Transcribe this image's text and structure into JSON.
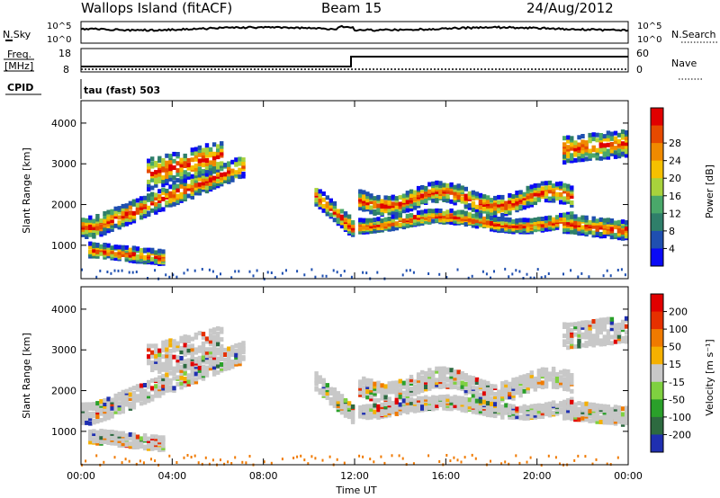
{
  "header": {
    "title": "Wallops Island (fitACF)",
    "beam": "Beam 15",
    "date": "24/Aug/2012"
  },
  "nsky_panel": {
    "left_label": "N.Sky",
    "right_label": "N.Search",
    "left_ticks": [
      "10^5",
      "10^0"
    ],
    "right_ticks": [
      "10^5",
      "10^0"
    ]
  },
  "freq_panel": {
    "left_label_1": "Freq.",
    "left_label_2": "[MHz]",
    "right_label": "Nave",
    "left_ticks": [
      "18",
      "8"
    ],
    "right_ticks": [
      "60",
      "0"
    ],
    "cpid_label": "CPID",
    "mode_text": "tau (fast) 503"
  },
  "chart_data": [
    {
      "type": "heatmap",
      "name": "power",
      "ylabel": "Slant Range [km]",
      "xlabel": "Time UT",
      "x_ticks": [
        "00:00",
        "04:00",
        "08:00",
        "12:00",
        "16:00",
        "20:00",
        "00:00"
      ],
      "x_range_hours": [
        0,
        24
      ],
      "y_ticks": [
        1000,
        2000,
        3000,
        4000
      ],
      "ylim": [
        180,
        4550
      ],
      "colorbar_label": "Power [dB]",
      "colorbar_ticks": [
        "4",
        "8",
        "12",
        "16",
        "20",
        "24",
        "28"
      ],
      "colors": [
        "#0a0af5",
        "#1f4fb0",
        "#2f7f6a",
        "#4aa86a",
        "#a8d23c",
        "#f5c000",
        "#f08a00",
        "#e64a00",
        "#e10000"
      ],
      "colorbar_range": [
        0,
        30
      ]
    },
    {
      "type": "heatmap",
      "name": "velocity",
      "ylabel": "Slant Range [km]",
      "xlabel": "Time UT",
      "x_ticks": [
        "00:00",
        "04:00",
        "08:00",
        "12:00",
        "16:00",
        "20:00",
        "00:00"
      ],
      "x_range_hours": [
        0,
        24
      ],
      "y_ticks": [
        1000,
        2000,
        3000,
        4000
      ],
      "ylim": [
        180,
        4550
      ],
      "colorbar_label": "Velocity [m s⁻¹]",
      "colorbar_ticks": [
        "200",
        "100",
        "50",
        "15",
        "-15",
        "-50",
        "-100",
        "-200"
      ],
      "colors": [
        "#1f2fb0",
        "#2d6a40",
        "#2aa02a",
        "#7fd040",
        "#c8c8c8",
        "#f5b000",
        "#f07a00",
        "#e63000",
        "#e10000"
      ]
    }
  ]
}
